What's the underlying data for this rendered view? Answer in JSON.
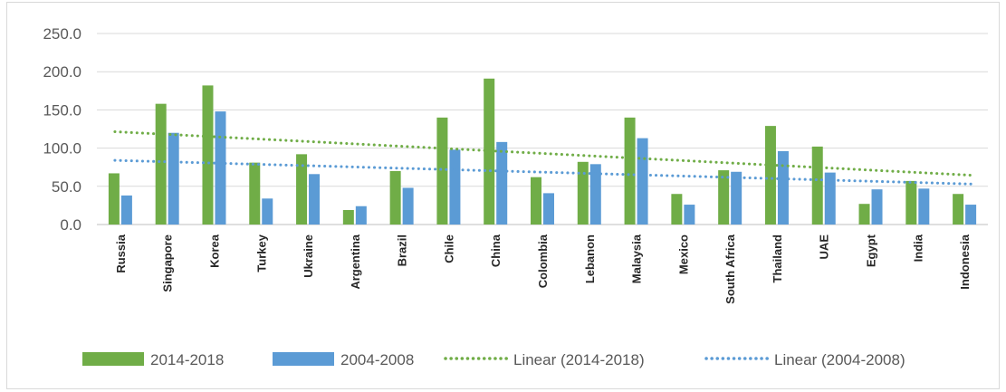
{
  "chart_data": {
    "type": "bar",
    "categories": [
      "Russia",
      "Singapore",
      "Korea",
      "Turkey",
      "Ukraine",
      "Argentina",
      "Brazil",
      "Chile",
      "China",
      "Colombia",
      "Lebanon",
      "Malaysia",
      "Mexico",
      "South Africa",
      "Thailand",
      "UAE",
      "Egypt",
      "India",
      "Indonesia"
    ],
    "series": [
      {
        "name": "2014-2018",
        "color": "#70ad47",
        "values": [
          67,
          158,
          182,
          81,
          92,
          19,
          70,
          140,
          191,
          62,
          82,
          140,
          40,
          71,
          129,
          102,
          27,
          57,
          40
        ]
      },
      {
        "name": "2004-2008",
        "color": "#5b9bd5",
        "values": [
          38,
          120,
          148,
          34,
          66,
          24,
          48,
          98,
          108,
          41,
          79,
          113,
          26,
          69,
          96,
          68,
          46,
          47,
          26
        ]
      }
    ],
    "trendlines": [
      {
        "name": "Linear (2014-2018)",
        "color": "#70ad47",
        "start": 121.5,
        "end": 64.5
      },
      {
        "name": "Linear (2004-2008)",
        "color": "#5b9bd5",
        "start": 84,
        "end": 53
      }
    ],
    "ylim": [
      0,
      250
    ],
    "yticks": [
      "0.0",
      "50.0",
      "100.0",
      "150.0",
      "200.0",
      "250.0"
    ],
    "grid": true,
    "legend": "bottom"
  }
}
